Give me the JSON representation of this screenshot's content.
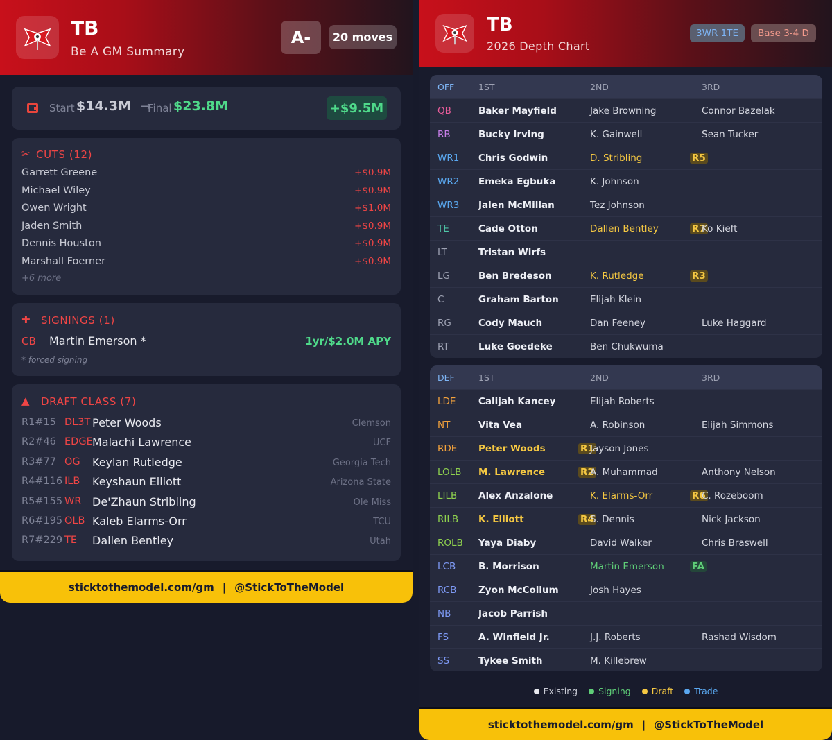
{
  "summary": {
    "team": "TB",
    "subtitle": "Be A GM Summary",
    "grade": "A-",
    "moves": "20 moves",
    "start_label": "Start",
    "start_value": "$14.3M",
    "final_label": "Final",
    "final_value": "$23.8M",
    "delta": "+$9.5M",
    "cuts": {
      "title": "CUTS (12)",
      "items": [
        {
          "name": "Garrett Greene",
          "amount": "+$0.9M"
        },
        {
          "name": "Michael Wiley",
          "amount": "+$0.9M"
        },
        {
          "name": "Owen Wright",
          "amount": "+$1.0M"
        },
        {
          "name": "Jaden Smith",
          "amount": "+$0.9M"
        },
        {
          "name": "Dennis Houston",
          "amount": "+$0.9M"
        },
        {
          "name": "Marshall Foerner",
          "amount": "+$0.9M"
        }
      ],
      "more": "+6 more"
    },
    "signings": {
      "title": "SIGNINGS (1)",
      "items": [
        {
          "pos": "CB",
          "name": "Martin Emerson *",
          "apy": "1yr/$2.0M APY"
        }
      ],
      "note": "* forced signing"
    },
    "draft": {
      "title": "DRAFT CLASS (7)",
      "items": [
        {
          "pick": "R1#15",
          "pos": "DL3T",
          "name": "Peter Woods",
          "school": "Clemson"
        },
        {
          "pick": "R2#46",
          "pos": "EDGE",
          "name": "Malachi Lawrence",
          "school": "UCF"
        },
        {
          "pick": "R3#77",
          "pos": "OG",
          "name": "Keylan Rutledge",
          "school": "Georgia Tech"
        },
        {
          "pick": "R4#116",
          "pos": "ILB",
          "name": "Keyshaun Elliott",
          "school": "Arizona State"
        },
        {
          "pick": "R5#155",
          "pos": "WR",
          "name": "De'Zhaun Stribling",
          "school": "Ole Miss"
        },
        {
          "pick": "R6#195",
          "pos": "OLB",
          "name": "Kaleb Elarms-Orr",
          "school": "TCU"
        },
        {
          "pick": "R7#229",
          "pos": "TE",
          "name": "Dallen Bentley",
          "school": "Utah"
        }
      ]
    },
    "footer": {
      "site": "sticktothemodel.com/gm",
      "sep": "|",
      "handle": "@StickToTheModel"
    }
  },
  "depth": {
    "team": "TB",
    "subtitle": "2026 Depth Chart",
    "tag_offense": "3WR 1TE",
    "tag_defense": "Base 3-4 D",
    "offense": {
      "unit": "OFF",
      "h1": "1ST",
      "h2": "2ND",
      "h3": "3RD",
      "rows": [
        {
          "pos": "QB",
          "c": "#e85c9a",
          "p1": "Baker Mayfield",
          "p2": "Jake Browning",
          "p3": "Connor Bazelak"
        },
        {
          "pos": "RB",
          "c": "#c77ee8",
          "p1": "Bucky Irving",
          "p2": "K. Gainwell",
          "p3": "Sean Tucker"
        },
        {
          "pos": "WR1",
          "c": "#5aa8f0",
          "p1": "Chris Godwin",
          "p2": "D. Stribling",
          "p3": "",
          "b2": "R5",
          "t2": "draft"
        },
        {
          "pos": "WR2",
          "c": "#5aa8f0",
          "p1": "Emeka Egbuka",
          "p2": "K. Johnson",
          "p3": ""
        },
        {
          "pos": "WR3",
          "c": "#5aa8f0",
          "p1": "Jalen McMillan",
          "p2": "Tez Johnson",
          "p3": ""
        },
        {
          "pos": "TE",
          "c": "#4fc7a8",
          "p1": "Cade Otton",
          "p2": "Dallen Bentley",
          "p3": "Ko Kieft",
          "b2": "R7",
          "t2": "draft"
        },
        {
          "pos": "LT",
          "c": "#9ea2b3",
          "p1": "Tristan Wirfs",
          "p2": "",
          "p3": ""
        },
        {
          "pos": "LG",
          "c": "#9ea2b3",
          "p1": "Ben Bredeson",
          "p2": "K. Rutledge",
          "p3": "",
          "b2": "R3",
          "t2": "draft"
        },
        {
          "pos": "C",
          "c": "#9ea2b3",
          "p1": "Graham Barton",
          "p2": "Elijah Klein",
          "p3": ""
        },
        {
          "pos": "RG",
          "c": "#9ea2b3",
          "p1": "Cody Mauch",
          "p2": "Dan Feeney",
          "p3": "Luke Haggard"
        },
        {
          "pos": "RT",
          "c": "#9ea2b3",
          "p1": "Luke Goedeke",
          "p2": "Ben Chukwuma",
          "p3": ""
        }
      ]
    },
    "defense": {
      "unit": "DEF",
      "h1": "1ST",
      "h2": "2ND",
      "h3": "3RD",
      "rows": [
        {
          "pos": "LDE",
          "c": "#f5a33c",
          "p1": "Calijah Kancey",
          "p2": "Elijah Roberts",
          "p3": ""
        },
        {
          "pos": "NT",
          "c": "#f5a33c",
          "p1": "Vita Vea",
          "p2": "A. Robinson",
          "p3": "Elijah Simmons"
        },
        {
          "pos": "RDE",
          "c": "#f5a33c",
          "p1": "Peter Woods",
          "p2": "Jayson Jones",
          "p3": "",
          "b1": "R1",
          "t1": "draft"
        },
        {
          "pos": "LOLB",
          "c": "#8fd14f",
          "p1": "M. Lawrence",
          "p2": "A. Muhammad",
          "p3": "Anthony Nelson",
          "b1": "R2",
          "t1": "draft"
        },
        {
          "pos": "LILB",
          "c": "#8fd14f",
          "p1": "Alex Anzalone",
          "p2": "K. Elarms-Orr",
          "p3": "C. Rozeboom",
          "b2": "R6",
          "t2": "draft"
        },
        {
          "pos": "RILB",
          "c": "#8fd14f",
          "p1": "K. Elliott",
          "p2": "S. Dennis",
          "p3": "Nick Jackson",
          "b1": "R4",
          "t1": "draft"
        },
        {
          "pos": "ROLB",
          "c": "#8fd14f",
          "p1": "Yaya Diaby",
          "p2": "David Walker",
          "p3": "Chris Braswell"
        },
        {
          "pos": "LCB",
          "c": "#7e9af5",
          "p1": "B. Morrison",
          "p2": "Martin Emerson",
          "p3": "",
          "b2": "FA",
          "t2": "sign"
        },
        {
          "pos": "RCB",
          "c": "#7e9af5",
          "p1": "Zyon McCollum",
          "p2": "Josh Hayes",
          "p3": ""
        },
        {
          "pos": "NB",
          "c": "#7e9af5",
          "p1": "Jacob Parrish",
          "p2": "",
          "p3": ""
        },
        {
          "pos": "FS",
          "c": "#7e9af5",
          "p1": "A. Winfield Jr.",
          "p2": "J.J. Roberts",
          "p3": "Rashad Wisdom"
        },
        {
          "pos": "SS",
          "c": "#7e9af5",
          "p1": "Tykee Smith",
          "p2": "M. Killebrew",
          "p3": ""
        }
      ]
    },
    "legend": [
      {
        "label": "Existing",
        "color": "#e8e9ef"
      },
      {
        "label": "Signing",
        "color": "#5fce78"
      },
      {
        "label": "Draft",
        "color": "#f5c842"
      },
      {
        "label": "Trade",
        "color": "#5aa8f0"
      }
    ],
    "footer": {
      "site": "sticktothemodel.com/gm",
      "sep": "|",
      "handle": "@StickToTheModel"
    }
  }
}
